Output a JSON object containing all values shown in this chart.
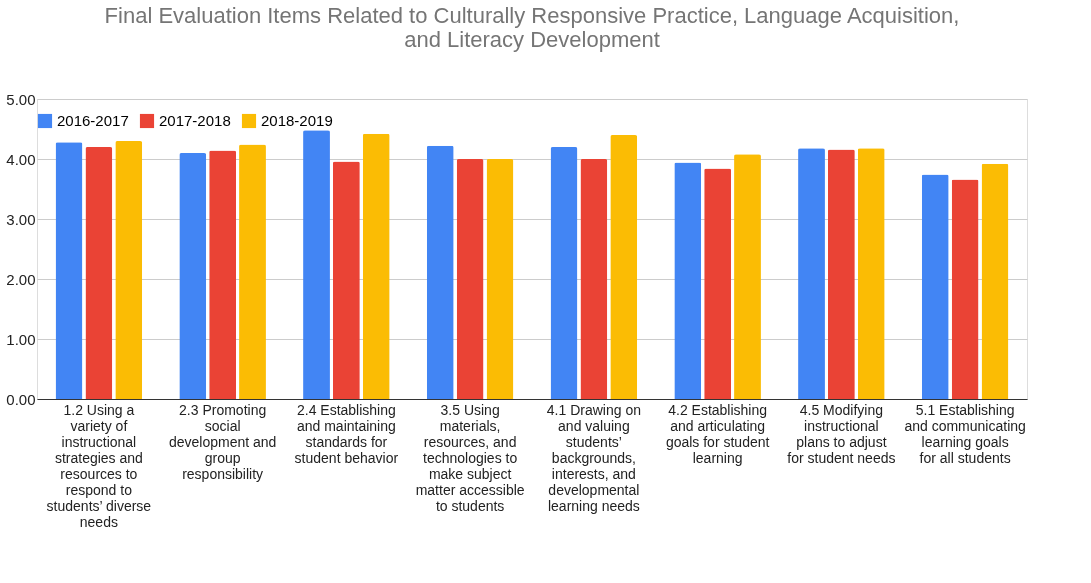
{
  "chart_data": {
    "type": "bar",
    "title": "Final Evaluation Items Related to Culturally Responsive Practice, Language Acquisition, and Literacy Development",
    "categories": [
      "1.2 Using a variety of instructional strategies and resources to respond to students’ diverse needs",
      "2.3 Promoting social development and group responsibility",
      "2.4 Establishing and maintaining standards for student behavior",
      "3.5 Using materials, resources, and technologies to make subject matter accessible to students",
      "4.1 Drawing on and valuing students’ backgrounds, interests, and developmental learning needs",
      "4.2 Establishing and articulating goals for student learning",
      "4.5 Modifying instructional plans to adjust for student needs",
      "5.1 Establishing and communicating learning goals for all students"
    ],
    "series": [
      {
        "name": "2016-2017",
        "color": "#4285f4",
        "values": [
          4.28,
          4.1,
          4.48,
          4.22,
          4.2,
          3.94,
          4.18,
          3.74
        ]
      },
      {
        "name": "2017-2018",
        "color": "#ea4335",
        "values": [
          4.2,
          4.14,
          3.96,
          4.0,
          4.0,
          3.84,
          4.16,
          3.66
        ]
      },
      {
        "name": "2018-2019",
        "color": "#fbbc04",
        "values": [
          4.3,
          4.24,
          4.42,
          4.0,
          4.4,
          4.08,
          4.18,
          3.92
        ]
      }
    ],
    "ylim": [
      0,
      5
    ],
    "yticks": [
      {
        "value": 0,
        "label": "0.00"
      },
      {
        "value": 1,
        "label": "1.00"
      },
      {
        "value": 2,
        "label": "2.00"
      },
      {
        "value": 3,
        "label": "3.00"
      },
      {
        "value": 4,
        "label": "4.00"
      },
      {
        "value": 5,
        "label": "5.00"
      }
    ],
    "grid": "y",
    "legend": "top"
  }
}
